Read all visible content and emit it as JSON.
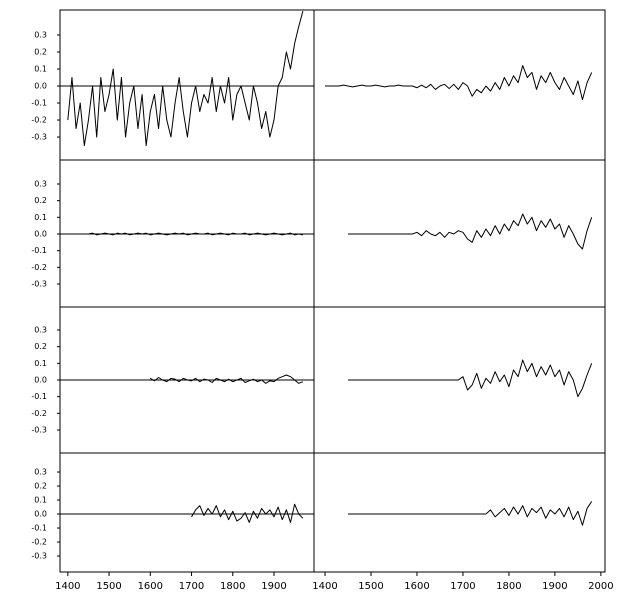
{
  "chart_data": [
    {
      "type": "line",
      "xlim": [
        1381,
        1997
      ],
      "ylim": [
        -0.435,
        0.447
      ],
      "reference_line": 0,
      "yticks": [
        -0.3,
        -0.2,
        -0.1,
        {
          "value": 0,
          "label": "0.0"
        },
        0.1,
        0.2,
        0.3
      ],
      "x": [
        1400,
        1410,
        1420,
        1430,
        1440,
        1450,
        1460,
        1470,
        1480,
        1490,
        1500,
        1510,
        1520,
        1530,
        1540,
        1550,
        1560,
        1570,
        1580,
        1590,
        1600,
        1610,
        1620,
        1630,
        1640,
        1650,
        1660,
        1670,
        1680,
        1690,
        1700,
        1710,
        1720,
        1730,
        1740,
        1750,
        1760,
        1770,
        1780,
        1790,
        1800,
        1810,
        1820,
        1830,
        1840,
        1850,
        1860,
        1870,
        1880,
        1890,
        1900,
        1910,
        1920,
        1930,
        1940,
        1950,
        1960,
        1970
      ],
      "values": [
        -0.2,
        0.05,
        -0.25,
        -0.1,
        -0.35,
        -0.2,
        0.0,
        -0.3,
        0.05,
        -0.15,
        -0.05,
        0.1,
        -0.2,
        0.05,
        -0.3,
        -0.1,
        0.0,
        -0.25,
        -0.05,
        -0.35,
        -0.15,
        -0.05,
        -0.25,
        0.0,
        -0.2,
        -0.3,
        -0.1,
        0.05,
        -0.15,
        -0.3,
        -0.1,
        0.0,
        -0.15,
        -0.05,
        -0.1,
        0.05,
        -0.15,
        0.0,
        -0.1,
        0.05,
        -0.2,
        -0.05,
        0.0,
        -0.1,
        -0.2,
        0.0,
        -0.1,
        -0.25,
        -0.15,
        -0.3,
        -0.2,
        0.0,
        0.05,
        0.2,
        0.1,
        0.25,
        0.35,
        0.44
      ]
    },
    {
      "type": "line",
      "xlim": [
        1376,
        2009
      ],
      "ylim": [
        -0.435,
        0.447
      ],
      "x": [
        1400,
        1410,
        1420,
        1430,
        1440,
        1450,
        1460,
        1470,
        1480,
        1490,
        1500,
        1510,
        1520,
        1530,
        1540,
        1550,
        1560,
        1570,
        1580,
        1590,
        1600,
        1610,
        1620,
        1630,
        1640,
        1650,
        1660,
        1670,
        1680,
        1690,
        1700,
        1710,
        1720,
        1730,
        1740,
        1750,
        1760,
        1770,
        1780,
        1790,
        1800,
        1810,
        1820,
        1830,
        1840,
        1850,
        1860,
        1870,
        1880,
        1890,
        1900,
        1910,
        1920,
        1930,
        1940,
        1950,
        1960,
        1970,
        1980
      ],
      "values": [
        0,
        0,
        0,
        0,
        0.005,
        0,
        -0.005,
        0,
        0.005,
        0,
        0,
        0.005,
        0,
        -0.005,
        0,
        0,
        0.005,
        0,
        0,
        0,
        -0.01,
        0.005,
        -0.01,
        0.01,
        -0.02,
        0,
        0.01,
        -0.015,
        0.01,
        -0.02,
        0.02,
        0,
        -0.06,
        -0.02,
        -0.04,
        0,
        -0.03,
        0.02,
        -0.02,
        0.05,
        0,
        0.06,
        0.02,
        0.12,
        0.05,
        0.08,
        -0.02,
        0.06,
        0.02,
        0.08,
        0.02,
        -0.02,
        0.05,
        0,
        -0.05,
        0.03,
        -0.08,
        0.02,
        0.08
      ]
    },
    {
      "type": "line",
      "xlim": [
        1381,
        1997
      ],
      "ylim": [
        -0.438,
        0.444
      ],
      "reference_line": 0,
      "yticks": [
        -0.3,
        -0.2,
        -0.1,
        {
          "value": 0,
          "label": "0.0"
        },
        0.1,
        0.2,
        0.3
      ],
      "x": [
        1450,
        1460,
        1470,
        1480,
        1490,
        1500,
        1510,
        1520,
        1530,
        1540,
        1550,
        1560,
        1570,
        1580,
        1590,
        1600,
        1610,
        1620,
        1630,
        1640,
        1650,
        1660,
        1670,
        1680,
        1690,
        1700,
        1710,
        1720,
        1730,
        1740,
        1750,
        1760,
        1770,
        1780,
        1790,
        1800,
        1810,
        1820,
        1830,
        1840,
        1850,
        1860,
        1870,
        1880,
        1890,
        1900,
        1910,
        1920,
        1930,
        1940,
        1950,
        1960,
        1970
      ],
      "values": [
        0,
        0.005,
        -0.005,
        0,
        0.005,
        0,
        -0.005,
        0.005,
        0,
        0.005,
        -0.005,
        0,
        0.005,
        0,
        0.005,
        -0.005,
        0,
        0.005,
        0,
        -0.005,
        0,
        0.005,
        0,
        0.005,
        -0.005,
        0,
        0.005,
        0,
        0,
        0.005,
        -0.005,
        0,
        0.005,
        0,
        -0.005,
        0.005,
        0,
        0,
        0.005,
        -0.005,
        0,
        0.005,
        0,
        -0.005,
        0,
        0.005,
        0,
        -0.005,
        0,
        0.005,
        -0.005,
        0,
        -0.005
      ]
    },
    {
      "type": "line",
      "xlim": [
        1376,
        2009
      ],
      "ylim": [
        -0.438,
        0.444
      ],
      "x": [
        1450,
        1460,
        1470,
        1480,
        1490,
        1500,
        1510,
        1520,
        1530,
        1540,
        1550,
        1560,
        1570,
        1580,
        1590,
        1600,
        1610,
        1620,
        1630,
        1640,
        1650,
        1660,
        1670,
        1680,
        1690,
        1700,
        1710,
        1720,
        1730,
        1740,
        1750,
        1760,
        1770,
        1780,
        1790,
        1800,
        1810,
        1820,
        1830,
        1840,
        1850,
        1860,
        1870,
        1880,
        1890,
        1900,
        1910,
        1920,
        1930,
        1940,
        1950,
        1960,
        1970,
        1980
      ],
      "values": [
        0,
        0,
        0,
        0,
        0,
        0,
        0,
        0,
        0,
        0,
        0,
        0,
        0,
        0,
        0,
        0.01,
        -0.01,
        0.02,
        0,
        -0.01,
        0.01,
        -0.02,
        0.01,
        0,
        0.02,
        0.01,
        -0.03,
        -0.05,
        0.02,
        -0.02,
        0.03,
        -0.01,
        0.05,
        0,
        0.06,
        0.02,
        0.08,
        0.05,
        0.12,
        0.06,
        0.1,
        0.02,
        0.08,
        0.04,
        0.09,
        0.03,
        0.06,
        -0.02,
        0.05,
        0,
        -0.06,
        -0.09,
        0.02,
        0.1
      ]
    },
    {
      "type": "line",
      "xlim": [
        1381,
        1997
      ],
      "ylim": [
        -0.438,
        0.438
      ],
      "reference_line": 0,
      "yticks": [
        -0.3,
        -0.2,
        -0.1,
        {
          "value": 0,
          "label": "0.0"
        },
        0.1,
        0.2,
        0.3
      ],
      "x": [
        1600,
        1610,
        1620,
        1630,
        1640,
        1650,
        1660,
        1670,
        1680,
        1690,
        1700,
        1710,
        1720,
        1730,
        1740,
        1750,
        1760,
        1770,
        1780,
        1790,
        1800,
        1810,
        1820,
        1830,
        1840,
        1850,
        1860,
        1870,
        1880,
        1890,
        1900,
        1910,
        1920,
        1930,
        1940,
        1950,
        1960,
        1970
      ],
      "values": [
        0.01,
        -0.005,
        0.015,
        0,
        -0.01,
        0.01,
        0.005,
        -0.01,
        0.01,
        0,
        -0.005,
        0.01,
        -0.01,
        0.005,
        0,
        -0.015,
        0.01,
        0,
        -0.01,
        0.005,
        -0.01,
        0,
        0.01,
        -0.015,
        -0.005,
        0.005,
        -0.01,
        0,
        -0.02,
        -0.005,
        -0.01,
        0.01,
        0.02,
        0.03,
        0.02,
        0,
        -0.02,
        -0.01
      ]
    },
    {
      "type": "line",
      "xlim": [
        1376,
        2009
      ],
      "ylim": [
        -0.438,
        0.438
      ],
      "x": [
        1450,
        1460,
        1470,
        1480,
        1490,
        1500,
        1510,
        1520,
        1530,
        1540,
        1550,
        1560,
        1570,
        1580,
        1590,
        1600,
        1610,
        1620,
        1630,
        1640,
        1650,
        1660,
        1670,
        1680,
        1690,
        1700,
        1710,
        1720,
        1730,
        1740,
        1750,
        1760,
        1770,
        1780,
        1790,
        1800,
        1810,
        1820,
        1830,
        1840,
        1850,
        1860,
        1870,
        1880,
        1890,
        1900,
        1910,
        1920,
        1930,
        1940,
        1950,
        1960,
        1970,
        1980
      ],
      "values": [
        0,
        0,
        0,
        0,
        0,
        0,
        0,
        0,
        0,
        0,
        0,
        0,
        0,
        0,
        0,
        0,
        0,
        0,
        0,
        0,
        0,
        0,
        0,
        0,
        0,
        0.02,
        -0.06,
        -0.03,
        0.04,
        -0.05,
        0.01,
        -0.02,
        0.05,
        -0.01,
        0.03,
        -0.04,
        0.06,
        0.02,
        0.12,
        0.05,
        0.1,
        0.02,
        0.08,
        0.03,
        0.09,
        0.02,
        0.06,
        -0.03,
        0.05,
        0,
        -0.1,
        -0.05,
        0.03,
        0.1
      ]
    },
    {
      "type": "line",
      "xlim": [
        1381,
        1997
      ],
      "ylim": [
        -0.414,
        0.436
      ],
      "reference_line": 0,
      "yticks": [
        -0.3,
        -0.2,
        -0.1,
        {
          "value": 0,
          "label": "0.0"
        },
        0.1,
        0.2,
        0.3
      ],
      "xticks": [
        1400,
        1500,
        1600,
        1700,
        1800,
        1900
      ],
      "x": [
        1700,
        1710,
        1720,
        1730,
        1740,
        1750,
        1760,
        1770,
        1780,
        1790,
        1800,
        1810,
        1820,
        1830,
        1840,
        1850,
        1860,
        1870,
        1880,
        1890,
        1900,
        1910,
        1920,
        1930,
        1940,
        1950,
        1960,
        1970
      ],
      "values": [
        -0.02,
        0.03,
        0.06,
        -0.01,
        0.04,
        0,
        0.06,
        -0.02,
        0.03,
        -0.04,
        0.02,
        -0.05,
        -0.03,
        0.01,
        -0.06,
        0.02,
        -0.03,
        0.04,
        0,
        0.03,
        -0.02,
        0.05,
        -0.04,
        0.03,
        -0.06,
        0.07,
        0,
        -0.03
      ]
    },
    {
      "type": "line",
      "xlim": [
        1376,
        2009
      ],
      "ylim": [
        -0.414,
        0.436
      ],
      "xticks": [
        1400,
        1500,
        1600,
        1700,
        1800,
        1900,
        2000
      ],
      "x": [
        1450,
        1460,
        1470,
        1480,
        1490,
        1500,
        1510,
        1520,
        1530,
        1540,
        1550,
        1560,
        1570,
        1580,
        1590,
        1600,
        1610,
        1620,
        1630,
        1640,
        1650,
        1660,
        1670,
        1680,
        1690,
        1700,
        1710,
        1720,
        1730,
        1740,
        1750,
        1760,
        1770,
        1780,
        1790,
        1800,
        1810,
        1820,
        1830,
        1840,
        1850,
        1860,
        1870,
        1880,
        1890,
        1900,
        1910,
        1920,
        1930,
        1940,
        1950,
        1960,
        1970,
        1980
      ],
      "values": [
        0,
        0,
        0,
        0,
        0,
        0,
        0,
        0,
        0,
        0,
        0,
        0,
        0,
        0,
        0,
        0,
        0,
        0,
        0,
        0,
        0,
        0,
        0,
        0,
        0,
        0,
        0,
        0,
        0,
        0,
        0,
        0.03,
        -0.02,
        0.01,
        0.04,
        -0.01,
        0.05,
        0,
        0.06,
        -0.02,
        0.04,
        0.01,
        0.05,
        -0.03,
        0.03,
        0,
        0.04,
        -0.02,
        0.05,
        -0.04,
        0.02,
        -0.08,
        0.04,
        0.09
      ]
    }
  ]
}
